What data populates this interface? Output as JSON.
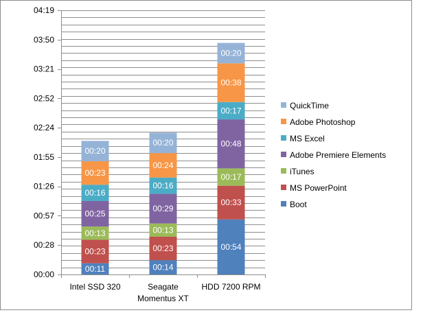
{
  "chart_data": {
    "type": "bar",
    "stacked": true,
    "categories": [
      "Intel SSD 320",
      "Seagate Momentus XT",
      "HDD 7200 RPM"
    ],
    "category_lines": [
      [
        "Intel SSD 320"
      ],
      [
        "Seagate",
        "Momentus XT"
      ],
      [
        "HDD 7200 RPM"
      ]
    ],
    "y_ticks": [
      "00:00",
      "00:28",
      "00:57",
      "01:26",
      "01:55",
      "02:24",
      "02:52",
      "03:21",
      "03:50",
      "04:19"
    ],
    "ylim_seconds": [
      0,
      259
    ],
    "grid": true,
    "legend_position": "right",
    "series": [
      {
        "name": "Boot",
        "color": "#4f81bd",
        "values": [
          11,
          14,
          54
        ],
        "labels": [
          "00:11",
          "00:14",
          "00:54"
        ]
      },
      {
        "name": "MS PowerPoint",
        "color": "#c0504d",
        "values": [
          23,
          23,
          33
        ],
        "labels": [
          "00:23",
          "00:23",
          "00:33"
        ]
      },
      {
        "name": "iTunes",
        "color": "#9bbb59",
        "values": [
          13,
          13,
          17
        ],
        "labels": [
          "00:13",
          "00:13",
          "00:17"
        ]
      },
      {
        "name": "Adobe Premiere Elements",
        "color": "#8064a2",
        "values": [
          25,
          29,
          48
        ],
        "labels": [
          "00:25",
          "00:29",
          "00:48"
        ]
      },
      {
        "name": "MS Excel",
        "color": "#4bacc6",
        "values": [
          16,
          16,
          17
        ],
        "labels": [
          "00:16",
          "00:16",
          "00:17"
        ]
      },
      {
        "name": "Adobe Photoshop",
        "color": "#f79646",
        "values": [
          23,
          24,
          38
        ],
        "labels": [
          "00:23",
          "00:24",
          "00:38"
        ]
      },
      {
        "name": "QuickTime",
        "color": "#95b3d7",
        "values": [
          20,
          20,
          20
        ],
        "labels": [
          "00:20",
          "00:20",
          "00:20"
        ]
      }
    ],
    "legend_order": [
      "QuickTime",
      "Adobe Photoshop",
      "MS Excel",
      "Adobe Premiere Elements",
      "iTunes",
      "MS PowerPoint",
      "Boot"
    ]
  }
}
